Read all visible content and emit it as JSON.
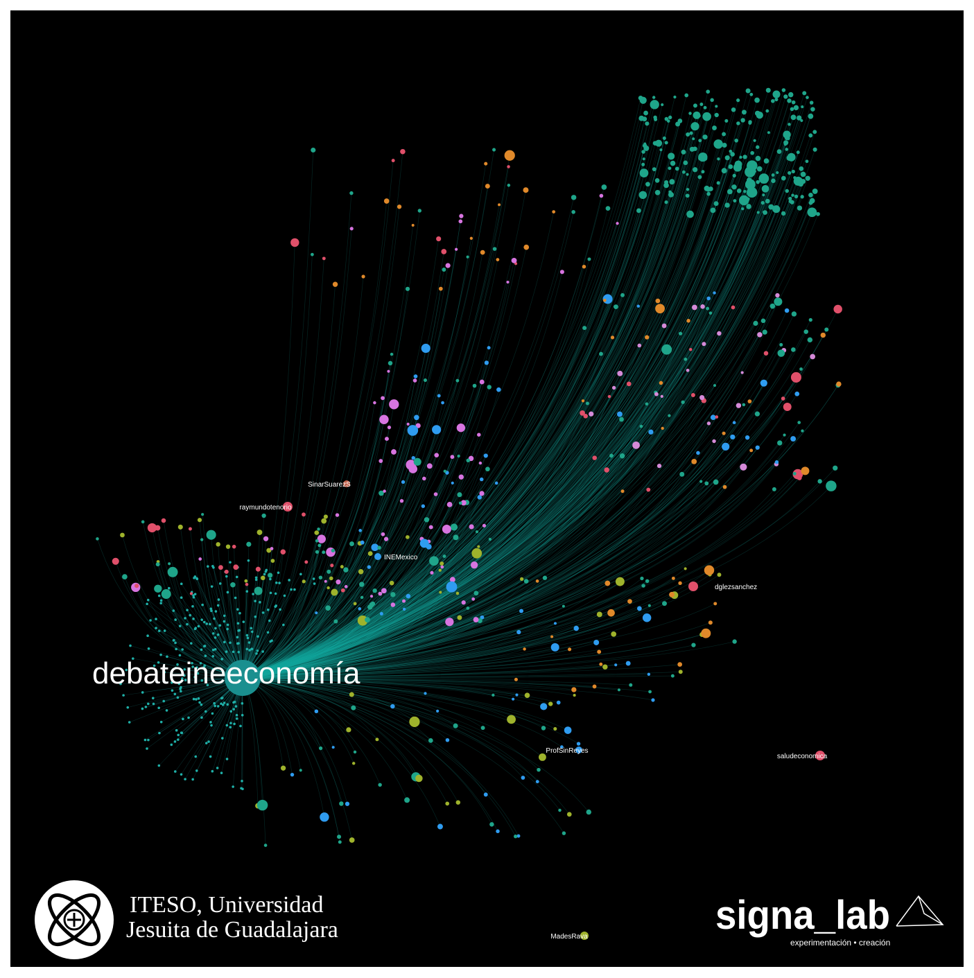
{
  "graph": {
    "hub": "debateineeconomía",
    "nodes": [
      {
        "label": "raymundotenorio"
      },
      {
        "label": "SinarSuarezS"
      },
      {
        "label": "INEMexico"
      },
      {
        "label": "dglezsanchez"
      },
      {
        "label": "saludeconomica"
      },
      {
        "label": "MadesRava"
      },
      {
        "label": "ProfSinReyes"
      }
    ]
  },
  "footer": {
    "iteso_line1": "ITESO, Universidad",
    "iteso_line2": "Jesuita de Guadalajara",
    "brand": "signa_lab",
    "tagline": "experimentación • creación"
  }
}
